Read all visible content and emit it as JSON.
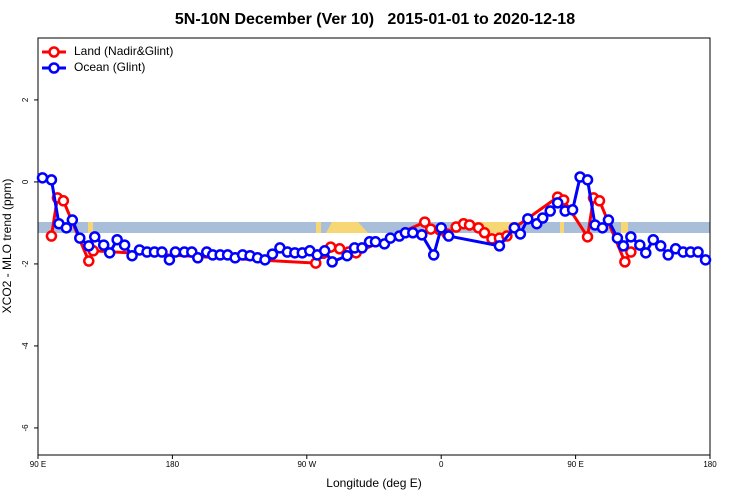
{
  "chart_data": {
    "type": "line",
    "title": "5N-10N December (Ver 10)   2015-01-01 to 2020-12-18",
    "x_label": "Longitude (deg E)",
    "y_label": "XCO2 - MLO trend (ppm)",
    "xlim": [
      90,
      540
    ],
    "ylim": [
      -6.66,
      3.51
    ],
    "xticks": [
      {
        "value": 90,
        "label": "90 E"
      },
      180,
      {
        "value": 270,
        "label": "90 W"
      },
      {
        "value": 360,
        "label": "0"
      },
      {
        "value": 450,
        "label": "90 E"
      },
      {
        "value": 540,
        "label": "180"
      }
    ],
    "yticks": [
      -6,
      -4,
      -2,
      0,
      2
    ],
    "legend": "top-left",
    "series": [
      {
        "name": "Land (Nadir&Glint)",
        "color": "#ff0000",
        "x": [
          99,
          103,
          107,
          124,
          127,
          276,
          281,
          286,
          292,
          298,
          303,
          349,
          353,
          359,
          364,
          370,
          375,
          379,
          385,
          389,
          394,
          399,
          404,
          409,
          438,
          442,
          458,
          462,
          466,
          483,
          487
        ],
        "values": [
          -1.32,
          -0.39,
          -0.46,
          -1.93,
          -1.68,
          -1.98,
          -1.74,
          -1.59,
          -1.63,
          -1.71,
          -1.73,
          -0.98,
          -1.15,
          -1.17,
          -1.27,
          -1.1,
          -1.02,
          -1.05,
          -1.12,
          -1.24,
          -1.39,
          -1.37,
          -1.32,
          -1.12,
          -0.37,
          -0.44,
          -1.34,
          -0.39,
          -0.46,
          -1.95,
          -1.71
        ]
      },
      {
        "name": "Ocean (Glint)",
        "color": "#0000ff",
        "x": [
          93,
          99,
          104,
          109,
          113,
          118,
          124,
          128,
          134,
          138,
          143,
          148,
          153,
          158,
          163,
          168,
          173,
          178,
          182,
          188,
          193,
          197,
          203,
          207,
          212,
          217,
          222,
          227,
          232,
          237,
          242,
          247,
          252,
          257,
          262,
          267,
          272,
          277,
          282,
          287,
          297,
          302,
          307,
          312,
          316,
          322,
          326,
          332,
          336,
          341,
          347,
          355,
          360,
          365,
          399,
          409,
          413,
          418,
          424,
          428,
          433,
          438,
          443,
          448,
          453,
          458,
          463,
          468,
          472,
          478,
          482,
          487,
          493,
          497,
          502,
          507,
          512,
          517,
          522,
          527,
          532,
          537
        ],
        "values": [
          0.1,
          0.05,
          -1.02,
          -1.12,
          -0.93,
          -1.37,
          -1.56,
          -1.34,
          -1.54,
          -1.73,
          -1.41,
          -1.54,
          -1.8,
          -1.66,
          -1.71,
          -1.71,
          -1.71,
          -1.9,
          -1.71,
          -1.71,
          -1.71,
          -1.85,
          -1.71,
          -1.78,
          -1.78,
          -1.78,
          -1.85,
          -1.78,
          -1.8,
          -1.85,
          -1.9,
          -1.76,
          -1.61,
          -1.71,
          -1.73,
          -1.73,
          -1.68,
          -1.78,
          -1.68,
          -1.95,
          -1.8,
          -1.61,
          -1.61,
          -1.46,
          -1.46,
          -1.51,
          -1.37,
          -1.32,
          -1.24,
          -1.24,
          -1.29,
          -1.78,
          -1.12,
          -1.32,
          -1.56,
          -1.12,
          -1.27,
          -0.9,
          -1.02,
          -0.88,
          -0.71,
          -0.51,
          -0.71,
          -0.68,
          0.12,
          0.05,
          -1.05,
          -1.12,
          -0.93,
          -1.37,
          -1.56,
          -1.34,
          -1.54,
          -1.73,
          -1.41,
          -1.56,
          -1.78,
          -1.63,
          -1.71,
          -1.71,
          -1.71,
          -1.9
        ]
      }
    ]
  }
}
